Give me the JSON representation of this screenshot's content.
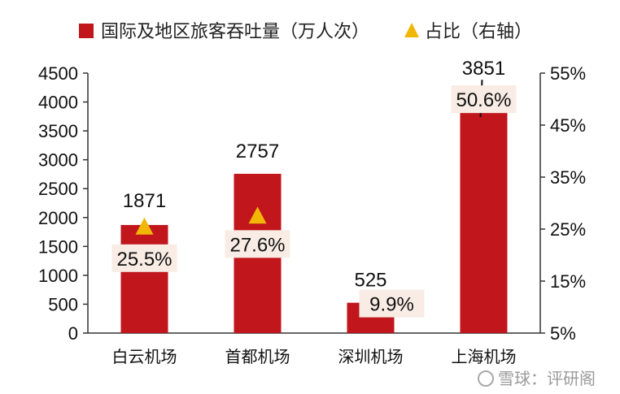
{
  "chart_data": {
    "type": "bar",
    "categories": [
      "白云机场",
      "首都机场",
      "深圳机场",
      "上海机场"
    ],
    "series": [
      {
        "name": "国际及地区旅客吞吐量（万人次）",
        "type": "bar",
        "axis": "left",
        "values": [
          1871,
          2757,
          525,
          3851
        ],
        "color": "#c0161c"
      },
      {
        "name": "占比（右轴）",
        "type": "scatter",
        "marker": "triangle",
        "axis": "right",
        "values": [
          25.5,
          27.6,
          9.9,
          50.6
        ],
        "labels": [
          "25.5%",
          "27.6%",
          "9.9%",
          "50.6%"
        ],
        "color": "#f2b705"
      }
    ],
    "value_labels": [
      "1871",
      "2757",
      "525",
      "3851"
    ],
    "y_left": {
      "min": 0,
      "max": 4500,
      "ticks": [
        0,
        500,
        1000,
        1500,
        2000,
        2500,
        3000,
        3500,
        4000,
        4500
      ]
    },
    "y_right": {
      "min": 5,
      "max": 55,
      "ticks": [
        5,
        15,
        25,
        35,
        45,
        55
      ],
      "tick_labels": [
        "5%",
        "15%",
        "25%",
        "35%",
        "45%",
        "55%"
      ]
    },
    "legend_position": "top",
    "grid": false,
    "label_box_color": "#f8ece4"
  },
  "legend": {
    "bar_label": "国际及地区旅客吞吐量（万人次）",
    "marker_label": "占比（右轴）"
  },
  "watermark": "雪球：评研阁"
}
